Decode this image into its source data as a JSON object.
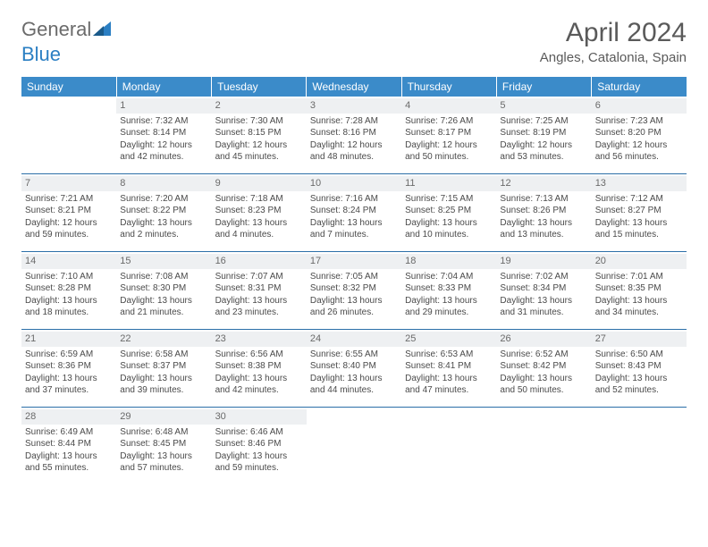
{
  "brand": {
    "part1": "General",
    "part2": "Blue"
  },
  "title": "April 2024",
  "location": "Angles, Catalonia, Spain",
  "colors": {
    "header_bg": "#3b8bc9",
    "header_text": "#ffffff",
    "row_border": "#2b6fa8",
    "daynum_bg": "#eef0f2",
    "text": "#4a4a4a",
    "logo_gray": "#6b6b6b",
    "logo_blue": "#2b7fc3"
  },
  "weekdays": [
    "Sunday",
    "Monday",
    "Tuesday",
    "Wednesday",
    "Thursday",
    "Friday",
    "Saturday"
  ],
  "weeks": [
    [
      {
        "day": "",
        "sunrise": "",
        "sunset": "",
        "daylight": ""
      },
      {
        "day": "1",
        "sunrise": "Sunrise: 7:32 AM",
        "sunset": "Sunset: 8:14 PM",
        "daylight": "Daylight: 12 hours and 42 minutes."
      },
      {
        "day": "2",
        "sunrise": "Sunrise: 7:30 AM",
        "sunset": "Sunset: 8:15 PM",
        "daylight": "Daylight: 12 hours and 45 minutes."
      },
      {
        "day": "3",
        "sunrise": "Sunrise: 7:28 AM",
        "sunset": "Sunset: 8:16 PM",
        "daylight": "Daylight: 12 hours and 48 minutes."
      },
      {
        "day": "4",
        "sunrise": "Sunrise: 7:26 AM",
        "sunset": "Sunset: 8:17 PM",
        "daylight": "Daylight: 12 hours and 50 minutes."
      },
      {
        "day": "5",
        "sunrise": "Sunrise: 7:25 AM",
        "sunset": "Sunset: 8:19 PM",
        "daylight": "Daylight: 12 hours and 53 minutes."
      },
      {
        "day": "6",
        "sunrise": "Sunrise: 7:23 AM",
        "sunset": "Sunset: 8:20 PM",
        "daylight": "Daylight: 12 hours and 56 minutes."
      }
    ],
    [
      {
        "day": "7",
        "sunrise": "Sunrise: 7:21 AM",
        "sunset": "Sunset: 8:21 PM",
        "daylight": "Daylight: 12 hours and 59 minutes."
      },
      {
        "day": "8",
        "sunrise": "Sunrise: 7:20 AM",
        "sunset": "Sunset: 8:22 PM",
        "daylight": "Daylight: 13 hours and 2 minutes."
      },
      {
        "day": "9",
        "sunrise": "Sunrise: 7:18 AM",
        "sunset": "Sunset: 8:23 PM",
        "daylight": "Daylight: 13 hours and 4 minutes."
      },
      {
        "day": "10",
        "sunrise": "Sunrise: 7:16 AM",
        "sunset": "Sunset: 8:24 PM",
        "daylight": "Daylight: 13 hours and 7 minutes."
      },
      {
        "day": "11",
        "sunrise": "Sunrise: 7:15 AM",
        "sunset": "Sunset: 8:25 PM",
        "daylight": "Daylight: 13 hours and 10 minutes."
      },
      {
        "day": "12",
        "sunrise": "Sunrise: 7:13 AM",
        "sunset": "Sunset: 8:26 PM",
        "daylight": "Daylight: 13 hours and 13 minutes."
      },
      {
        "day": "13",
        "sunrise": "Sunrise: 7:12 AM",
        "sunset": "Sunset: 8:27 PM",
        "daylight": "Daylight: 13 hours and 15 minutes."
      }
    ],
    [
      {
        "day": "14",
        "sunrise": "Sunrise: 7:10 AM",
        "sunset": "Sunset: 8:28 PM",
        "daylight": "Daylight: 13 hours and 18 minutes."
      },
      {
        "day": "15",
        "sunrise": "Sunrise: 7:08 AM",
        "sunset": "Sunset: 8:30 PM",
        "daylight": "Daylight: 13 hours and 21 minutes."
      },
      {
        "day": "16",
        "sunrise": "Sunrise: 7:07 AM",
        "sunset": "Sunset: 8:31 PM",
        "daylight": "Daylight: 13 hours and 23 minutes."
      },
      {
        "day": "17",
        "sunrise": "Sunrise: 7:05 AM",
        "sunset": "Sunset: 8:32 PM",
        "daylight": "Daylight: 13 hours and 26 minutes."
      },
      {
        "day": "18",
        "sunrise": "Sunrise: 7:04 AM",
        "sunset": "Sunset: 8:33 PM",
        "daylight": "Daylight: 13 hours and 29 minutes."
      },
      {
        "day": "19",
        "sunrise": "Sunrise: 7:02 AM",
        "sunset": "Sunset: 8:34 PM",
        "daylight": "Daylight: 13 hours and 31 minutes."
      },
      {
        "day": "20",
        "sunrise": "Sunrise: 7:01 AM",
        "sunset": "Sunset: 8:35 PM",
        "daylight": "Daylight: 13 hours and 34 minutes."
      }
    ],
    [
      {
        "day": "21",
        "sunrise": "Sunrise: 6:59 AM",
        "sunset": "Sunset: 8:36 PM",
        "daylight": "Daylight: 13 hours and 37 minutes."
      },
      {
        "day": "22",
        "sunrise": "Sunrise: 6:58 AM",
        "sunset": "Sunset: 8:37 PM",
        "daylight": "Daylight: 13 hours and 39 minutes."
      },
      {
        "day": "23",
        "sunrise": "Sunrise: 6:56 AM",
        "sunset": "Sunset: 8:38 PM",
        "daylight": "Daylight: 13 hours and 42 minutes."
      },
      {
        "day": "24",
        "sunrise": "Sunrise: 6:55 AM",
        "sunset": "Sunset: 8:40 PM",
        "daylight": "Daylight: 13 hours and 44 minutes."
      },
      {
        "day": "25",
        "sunrise": "Sunrise: 6:53 AM",
        "sunset": "Sunset: 8:41 PM",
        "daylight": "Daylight: 13 hours and 47 minutes."
      },
      {
        "day": "26",
        "sunrise": "Sunrise: 6:52 AM",
        "sunset": "Sunset: 8:42 PM",
        "daylight": "Daylight: 13 hours and 50 minutes."
      },
      {
        "day": "27",
        "sunrise": "Sunrise: 6:50 AM",
        "sunset": "Sunset: 8:43 PM",
        "daylight": "Daylight: 13 hours and 52 minutes."
      }
    ],
    [
      {
        "day": "28",
        "sunrise": "Sunrise: 6:49 AM",
        "sunset": "Sunset: 8:44 PM",
        "daylight": "Daylight: 13 hours and 55 minutes."
      },
      {
        "day": "29",
        "sunrise": "Sunrise: 6:48 AM",
        "sunset": "Sunset: 8:45 PM",
        "daylight": "Daylight: 13 hours and 57 minutes."
      },
      {
        "day": "30",
        "sunrise": "Sunrise: 6:46 AM",
        "sunset": "Sunset: 8:46 PM",
        "daylight": "Daylight: 13 hours and 59 minutes."
      },
      {
        "day": "",
        "sunrise": "",
        "sunset": "",
        "daylight": ""
      },
      {
        "day": "",
        "sunrise": "",
        "sunset": "",
        "daylight": ""
      },
      {
        "day": "",
        "sunrise": "",
        "sunset": "",
        "daylight": ""
      },
      {
        "day": "",
        "sunrise": "",
        "sunset": "",
        "daylight": ""
      }
    ]
  ]
}
